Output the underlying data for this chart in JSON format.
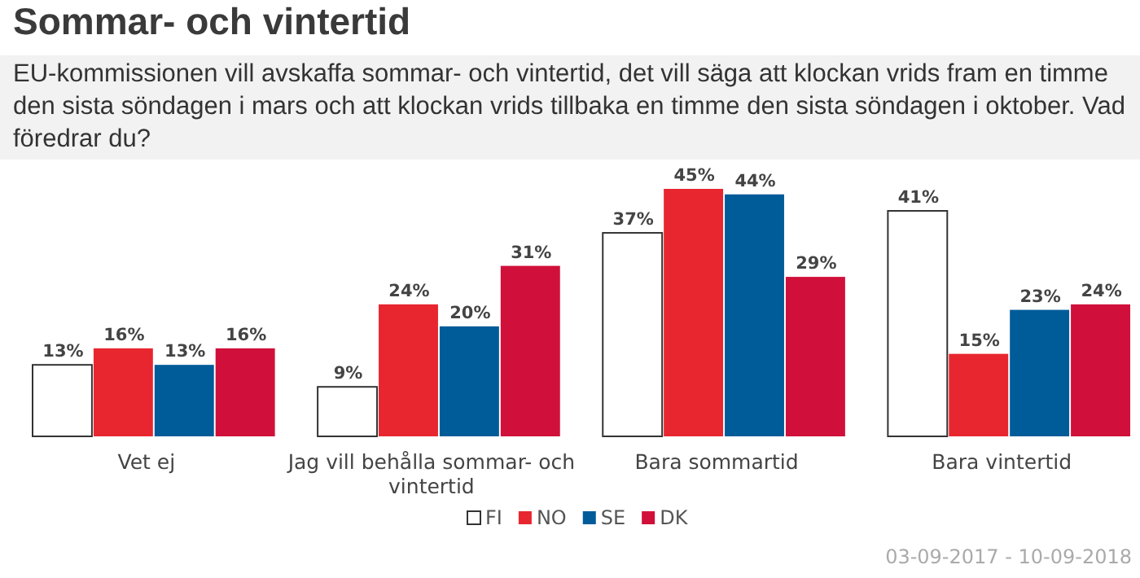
{
  "chart_data": {
    "type": "bar",
    "title": "Sommar- och vintertid",
    "subtitle": "EU-kommissionen vill avskaffa sommar- och vintertid, det vill säga att klockan vrids fram en timme den sista söndagen i mars och att klockan vrids tillbaka en timme den sista söndagen i oktober. Vad föredrar du?",
    "categories": [
      "Vet ej",
      "Jag vill behålla sommar- och vintertid",
      "Bara sommartid",
      "Bara vintertid"
    ],
    "series": [
      {
        "name": "FI",
        "color": "#ffffff",
        "values": [
          13,
          9,
          37,
          41
        ],
        "value_labels": [
          "13%",
          "9%",
          "37%",
          "41%"
        ]
      },
      {
        "name": "NO",
        "color": "#e8262f",
        "values": [
          16,
          24,
          45,
          15
        ],
        "value_labels": [
          "16%",
          "24%",
          "45%",
          "15%"
        ]
      },
      {
        "name": "SE",
        "color": "#005b99",
        "values": [
          13,
          20,
          44,
          23
        ],
        "value_labels": [
          "13%",
          "20%",
          "44%",
          "23%"
        ]
      },
      {
        "name": "DK",
        "color": "#d0103a",
        "values": [
          16,
          31,
          29,
          24
        ],
        "value_labels": [
          "16%",
          "31%",
          "29%",
          "24%"
        ]
      }
    ],
    "legend": "bottom",
    "annotations": [
      "03-09-2017 - 10-09-2018"
    ]
  }
}
